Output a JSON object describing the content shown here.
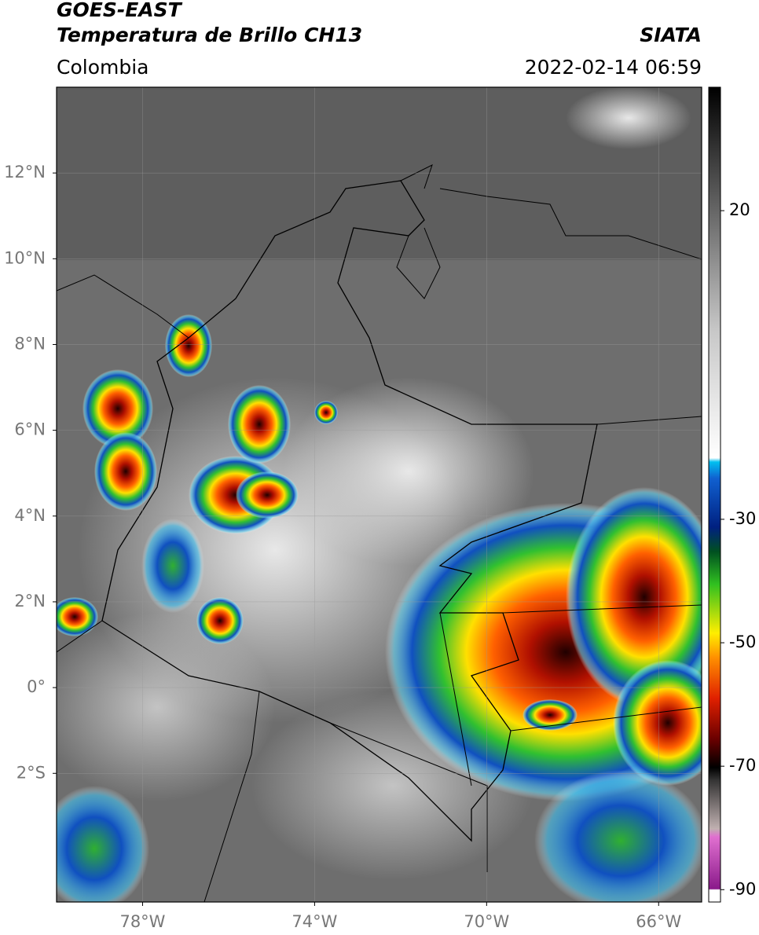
{
  "header": {
    "title": "GOES-EAST",
    "subtitle": "Temperatura de Brillo CH13",
    "source": "SIATA",
    "region": "Colombia",
    "timestamp": "2022-02-14 06:59"
  },
  "map": {
    "xlim": [
      -80,
      -65
    ],
    "ylim": [
      -5,
      14
    ],
    "xticks": [
      {
        "value": -78,
        "label": "78°W"
      },
      {
        "value": -74,
        "label": "74°W"
      },
      {
        "value": -70,
        "label": "70°W"
      },
      {
        "value": -66,
        "label": "66°W"
      }
    ],
    "yticks": [
      {
        "value": 12,
        "label": "12°N"
      },
      {
        "value": 10,
        "label": "10°N"
      },
      {
        "value": 8,
        "label": "8°N"
      },
      {
        "value": 6,
        "label": "6°N"
      },
      {
        "value": 4,
        "label": "4°N"
      },
      {
        "value": 2,
        "label": "2°N"
      },
      {
        "value": 0,
        "label": "0°"
      },
      {
        "value": -2,
        "label": "2°S"
      }
    ],
    "grid": true,
    "colorbar": {
      "lim": [
        -92,
        40
      ],
      "ticks": [
        20,
        -30,
        -50,
        -70,
        -90
      ]
    }
  }
}
